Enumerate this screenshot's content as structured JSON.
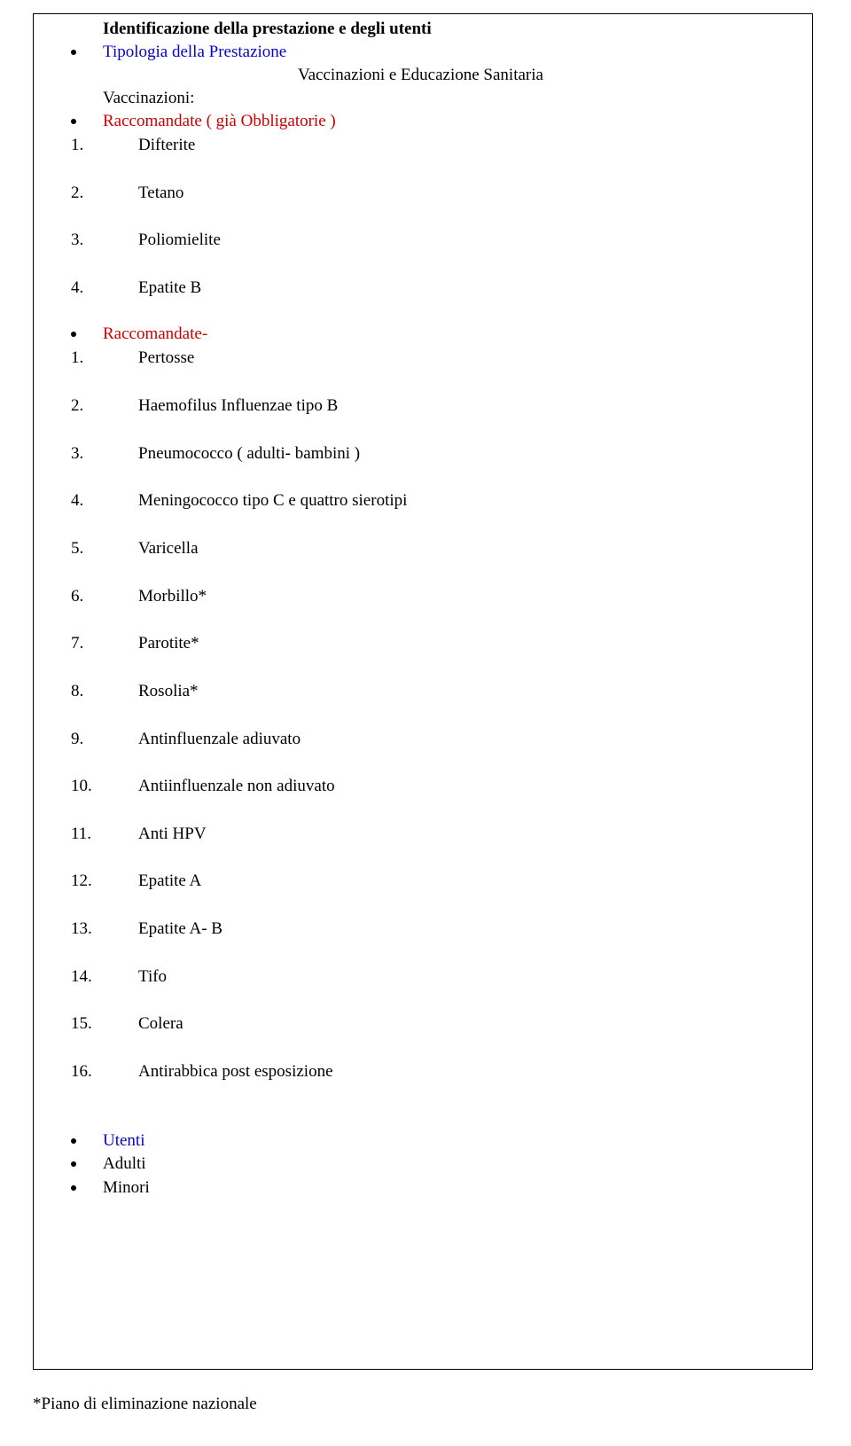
{
  "title": "Identificazione della prestazione e degli utenti",
  "tipologia_label": "Tipologia della Prestazione",
  "subtitle": "Vaccinazioni e Educazione Sanitaria",
  "vacc_label": "Vaccinazioni:",
  "racc_obb_label": "Raccomandate ( già Obbligatorie )",
  "list_a": [
    {
      "n": "1.",
      "t": "Difterite"
    },
    {
      "n": "2.",
      "t": "Tetano"
    },
    {
      "n": "3.",
      "t": "Poliomielite"
    },
    {
      "n": "4.",
      "t": "Epatite B"
    }
  ],
  "racc_label": "Raccomandate-",
  "list_b": [
    {
      "n": "1.",
      "t": "Pertosse"
    },
    {
      "n": "2.",
      "t": "Haemofilus Influenzae tipo B"
    },
    {
      "n": "3.",
      "t": "Pneumococco ( adulti- bambini )"
    },
    {
      "n": "4.",
      "t": "Meningococco tipo C e quattro sierotipi"
    },
    {
      "n": "5.",
      "t": "Varicella"
    },
    {
      "n": "6.",
      "t": "Morbillo*"
    },
    {
      "n": "7.",
      "t": "Parotite*"
    },
    {
      "n": "8.",
      "t": "Rosolia*"
    },
    {
      "n": "9.",
      "t": "Antinfluenzale adiuvato"
    },
    {
      "n": "10.",
      "t": "Antiinfluenzale non adiuvato"
    },
    {
      "n": "11.",
      "t": "Anti HPV"
    },
    {
      "n": "12.",
      "t": "Epatite A"
    },
    {
      "n": "13.",
      "t": "Epatite A- B"
    },
    {
      "n": "14.",
      "t": "Tifo"
    },
    {
      "n": "15.",
      "t": "Colera"
    },
    {
      "n": "16.",
      "t": "Antirabbica post esposizione"
    }
  ],
  "utenti_label": "Utenti",
  "adulti_label": "Adulti",
  "minori_label": "Minori",
  "footnote": "*Piano di eliminazione nazionale"
}
